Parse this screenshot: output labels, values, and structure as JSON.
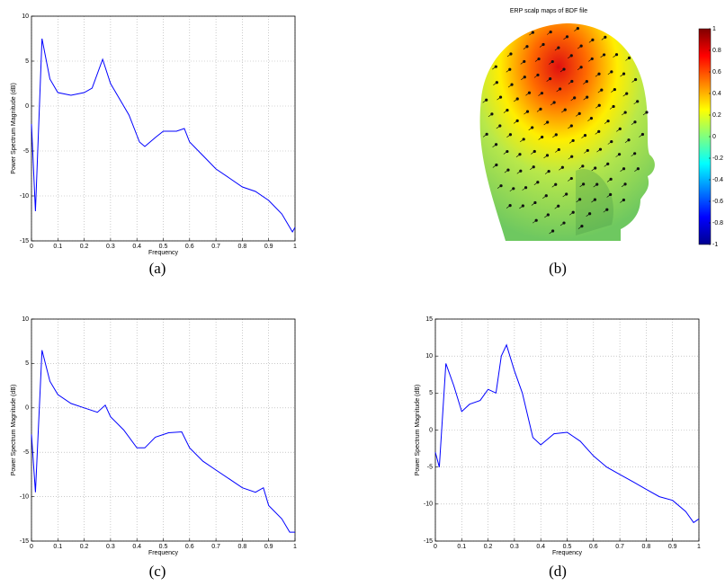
{
  "chart_data": [
    {
      "type": "line",
      "caption": "(a)",
      "xlabel": "Frequency",
      "ylabel": "Power Spectrum Magnitude (dB)",
      "xlim": [
        0,
        1
      ],
      "ylim": [
        -15,
        10
      ],
      "xticks": [
        0,
        0.1,
        0.2,
        0.3,
        0.4,
        0.5,
        0.6,
        0.7,
        0.8,
        0.9,
        1
      ],
      "yticks": [
        -15,
        -10,
        -5,
        0,
        5,
        10
      ],
      "grid": true,
      "series": [
        {
          "color": "#0000ff",
          "x": [
            0,
            0.015,
            0.04,
            0.07,
            0.1,
            0.15,
            0.2,
            0.23,
            0.27,
            0.3,
            0.33,
            0.37,
            0.41,
            0.43,
            0.47,
            0.5,
            0.55,
            0.58,
            0.6,
            0.65,
            0.7,
            0.75,
            0.8,
            0.85,
            0.9,
            0.95,
            0.99,
            1
          ],
          "values": [
            -2,
            -11.7,
            7.5,
            3,
            1.5,
            1.2,
            1.5,
            2,
            5.2,
            2.5,
            1,
            -1,
            -4,
            -4.5,
            -3.5,
            -2.8,
            -2.8,
            -2.5,
            -4,
            -5.5,
            -7,
            -8,
            -9,
            -9.5,
            -10.5,
            -12,
            -14,
            -13.5
          ]
        }
      ]
    },
    {
      "type": "scalp-map",
      "caption": "(b)",
      "title": "ERP scalp maps of BDF file",
      "clim": [
        -1,
        1
      ],
      "cticks": [
        1,
        0.8,
        0.6,
        0.4,
        0.2,
        0,
        -0.2,
        -0.4,
        -0.6,
        -0.8,
        -1
      ]
    },
    {
      "type": "line",
      "caption": "(c)",
      "xlabel": "Frequency",
      "ylabel": "Power Spectrum Magnitude (dB)",
      "xlim": [
        0,
        1
      ],
      "ylim": [
        -15,
        10
      ],
      "xticks": [
        0,
        0.1,
        0.2,
        0.3,
        0.4,
        0.5,
        0.6,
        0.7,
        0.8,
        0.9,
        1
      ],
      "yticks": [
        -15,
        -10,
        -5,
        0,
        5,
        10
      ],
      "grid": true,
      "series": [
        {
          "color": "#0000ff",
          "x": [
            0,
            0.015,
            0.04,
            0.07,
            0.1,
            0.15,
            0.2,
            0.25,
            0.28,
            0.3,
            0.35,
            0.4,
            0.43,
            0.47,
            0.52,
            0.57,
            0.6,
            0.65,
            0.7,
            0.75,
            0.8,
            0.85,
            0.88,
            0.9,
            0.95,
            0.98,
            1
          ],
          "values": [
            -3,
            -9.5,
            6.5,
            3,
            1.5,
            0.5,
            0,
            -0.5,
            0.3,
            -1,
            -2.5,
            -4.5,
            -4.5,
            -3.3,
            -2.8,
            -2.7,
            -4.5,
            -6,
            -7,
            -8,
            -9,
            -9.5,
            -9,
            -11,
            -12.5,
            -14,
            -14
          ]
        }
      ]
    },
    {
      "type": "line",
      "caption": "(d)",
      "xlabel": "Frequency",
      "ylabel": "Power Spectrum Magnitude (dB)",
      "xlim": [
        0,
        1
      ],
      "ylim": [
        -15,
        15
      ],
      "xticks": [
        0,
        0.1,
        0.2,
        0.3,
        0.4,
        0.5,
        0.6,
        0.7,
        0.8,
        0.9,
        1
      ],
      "yticks": [
        -15,
        -10,
        -5,
        0,
        5,
        10,
        15
      ],
      "grid": true,
      "series": [
        {
          "color": "#0000ff",
          "x": [
            0,
            0.015,
            0.04,
            0.07,
            0.1,
            0.13,
            0.17,
            0.2,
            0.23,
            0.25,
            0.27,
            0.3,
            0.33,
            0.37,
            0.4,
            0.45,
            0.5,
            0.55,
            0.6,
            0.65,
            0.7,
            0.75,
            0.8,
            0.85,
            0.9,
            0.95,
            0.98,
            1
          ],
          "values": [
            -3,
            -5,
            9,
            6,
            2.5,
            3.5,
            4,
            5.5,
            5,
            10,
            11.5,
            8,
            5,
            -1,
            -2,
            -0.5,
            -0.3,
            -1.5,
            -3.5,
            -5,
            -6,
            -7,
            -8,
            -9,
            -9.5,
            -11,
            -12.5,
            -12
          ]
        }
      ]
    }
  ]
}
